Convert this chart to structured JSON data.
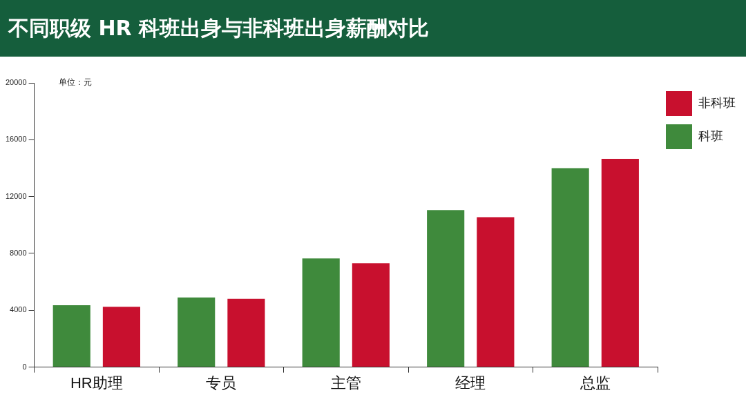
{
  "chart_data": {
    "type": "bar",
    "title": "不同职级 HR 科班出身与非科班出身薪酬对比",
    "categories": [
      "HR助理",
      "专员",
      "主管",
      "经理",
      "总监"
    ],
    "series": [
      {
        "name": "科班",
        "color": "#3f8a3c",
        "values": [
          4350,
          4900,
          7650,
          11050,
          14000
        ]
      },
      {
        "name": "非科班",
        "color": "#c8102e",
        "values": [
          4250,
          4800,
          7300,
          10550,
          14650
        ]
      }
    ],
    "ylim": [
      0,
      20000
    ],
    "yticks": [
      0,
      4000,
      8000,
      12000,
      16000,
      20000
    ],
    "grid": false,
    "legend": "top right",
    "annotations": [
      "单位：元"
    ]
  }
}
